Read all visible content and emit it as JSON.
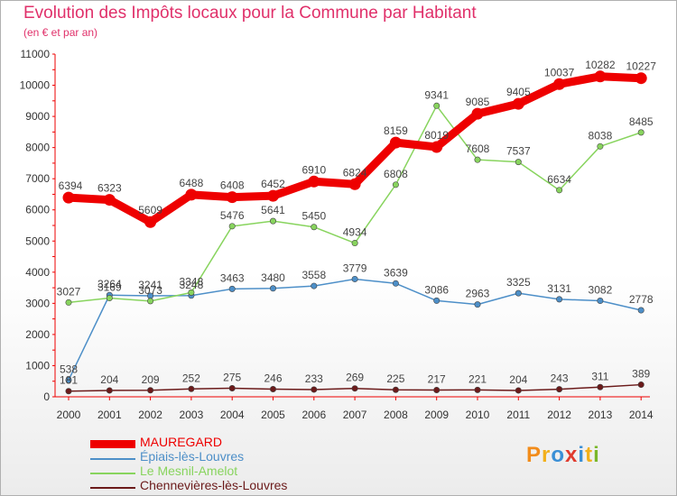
{
  "title": "Evolution des Impôts locaux pour la Commune par Habitant",
  "subtitle": "(en € et par an)",
  "logo": {
    "text": "Proxiti",
    "letter_colors": [
      "#f28c1b",
      "#f2b01b",
      "#3a8fd6",
      "#e03b2e",
      "#3a8fd6",
      "#f2b01b",
      "#7ab72a"
    ]
  },
  "chart_data": {
    "type": "line",
    "title": "Evolution des Impôts locaux pour la Commune par Habitant",
    "subtitle": "(en € et par an)",
    "x": [
      "2000",
      "2001",
      "2002",
      "2003",
      "2004",
      "2005",
      "2006",
      "2007",
      "2008",
      "2009",
      "2010",
      "2011",
      "2012",
      "2013",
      "2014"
    ],
    "ylim": [
      0,
      11000
    ],
    "yticks": [
      "0",
      "1000",
      "2000",
      "3000",
      "4000",
      "5000",
      "6000",
      "7000",
      "8000",
      "9000",
      "10000",
      "11000"
    ],
    "grid": false,
    "legend_position": "bottom-left",
    "series": [
      {
        "name": "MAUREGARD",
        "color": "#ee0000",
        "values": [
          6394,
          6323,
          5609,
          6488,
          6408,
          6452,
          6910,
          6824,
          8159,
          8019,
          9085,
          9405,
          10037,
          10282,
          10227
        ],
        "labels": [
          "6394",
          "6323",
          "5609",
          "6488",
          "6408",
          "6452",
          "6910",
          "6824",
          "8159",
          "8019",
          "9085",
          "9405",
          "10037",
          "10282",
          "10227"
        ]
      },
      {
        "name": "Épiais-lès-Louvres",
        "color": "#4d8fc8",
        "values": [
          538,
          3264,
          3241,
          3248,
          3463,
          3480,
          3558,
          3779,
          3639,
          3086,
          2963,
          3325,
          3131,
          3082,
          2778
        ],
        "labels": [
          "538",
          "3264",
          "3241",
          "3248",
          "3463",
          "3480",
          "3558",
          "3779",
          "3639",
          "3086",
          "2963",
          "3325",
          "3131",
          "3082",
          "2778"
        ]
      },
      {
        "name": "Le Mesnil-Amelot",
        "color": "#88d45e",
        "values": [
          3027,
          3169,
          3073,
          3348,
          5476,
          5641,
          5450,
          4934,
          6808,
          9341,
          7608,
          7537,
          6634,
          8038,
          8485
        ],
        "labels": [
          "3027",
          "3169",
          "3073",
          "3348",
          "5476",
          "5641",
          "5450",
          "4934",
          "6808",
          "9341",
          "7608",
          "7537",
          "6634",
          "8038",
          "8485"
        ]
      },
      {
        "name": "Chennevières-lès-Louvres",
        "color": "#6b1a1a",
        "values": [
          181,
          204,
          209,
          252,
          275,
          246,
          233,
          269,
          225,
          217,
          221,
          204,
          243,
          311,
          389
        ],
        "labels": [
          "181",
          "204",
          "209",
          "252",
          "275",
          "246",
          "233",
          "269",
          "225",
          "217",
          "221",
          "204",
          "243",
          "311",
          "389"
        ]
      }
    ]
  }
}
